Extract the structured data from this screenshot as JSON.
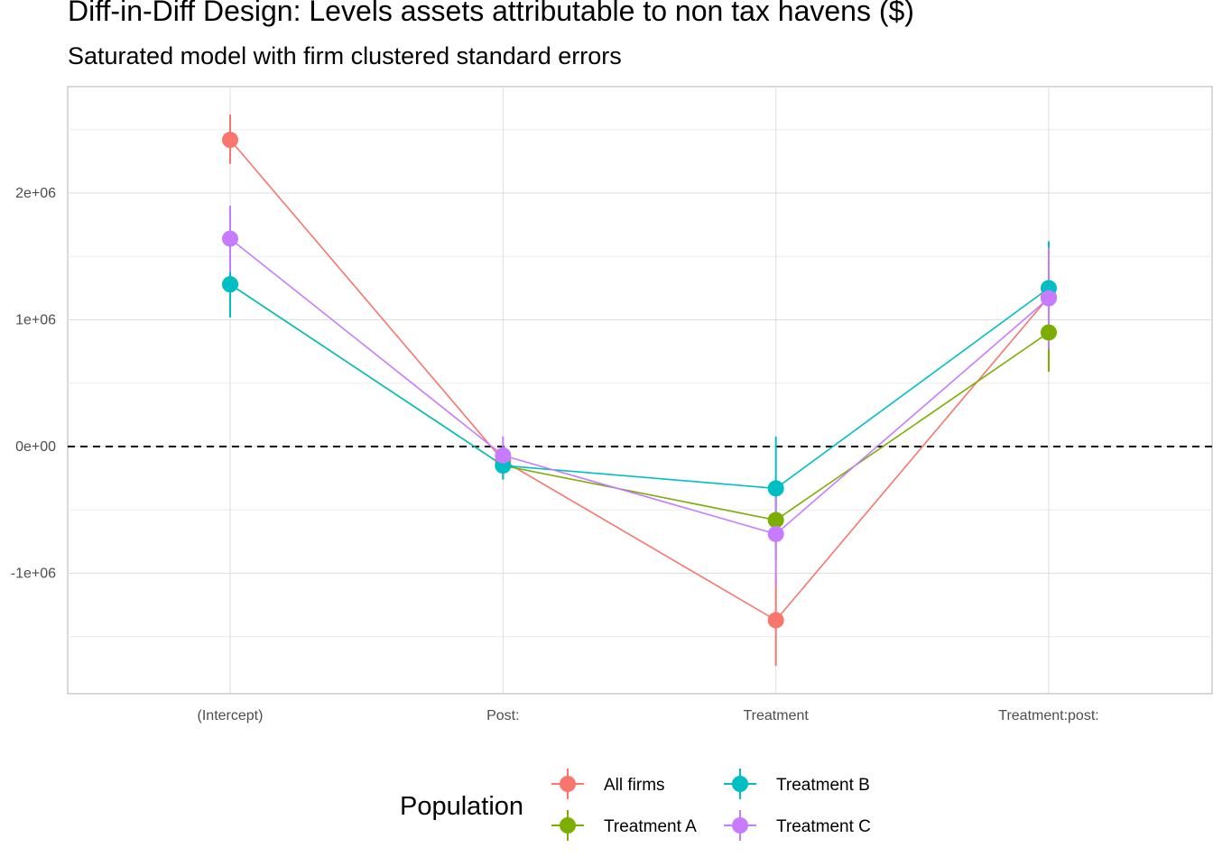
{
  "chart_data": {
    "type": "scatter",
    "title": "Diff-in-Diff Design: Levels assets attributable to non tax havens  ($)",
    "subtitle": "Saturated model with firm clustered standard errors",
    "xlabel": "",
    "ylabel": "",
    "categories": [
      "(Intercept)",
      "Post:",
      "Treatment",
      "Treatment:post:"
    ],
    "y_ticks": [
      -1000000,
      0,
      1000000,
      2000000
    ],
    "y_tick_labels": [
      "-1e+06",
      "0e+00",
      "1e+06",
      "2e+06"
    ],
    "ylim": [
      -1950000,
      2840000
    ],
    "reference_line": 0,
    "grid": true,
    "legend_title": "Population",
    "legend_position": "bottom",
    "series": [
      {
        "name": "All firms",
        "color": "#F8766D",
        "values": [
          2420000,
          -110000,
          -1370000,
          1180000
        ],
        "error_low": [
          2230000,
          -230000,
          -1730000,
          880000
        ],
        "error_high": [
          2620000,
          10000,
          -1010000,
          1480000
        ]
      },
      {
        "name": "Treatment A",
        "color": "#7CAE00",
        "values": [
          1280000,
          -150000,
          -580000,
          900000
        ],
        "error_low": [
          1020000,
          -260000,
          -900000,
          590000
        ],
        "error_high": [
          1540000,
          -40000,
          -260000,
          1210000
        ]
      },
      {
        "name": "Treatment B",
        "color": "#00BFC4",
        "values": [
          1280000,
          -150000,
          -330000,
          1250000
        ],
        "error_low": [
          1020000,
          -260000,
          -740000,
          880000
        ],
        "error_high": [
          1540000,
          -40000,
          80000,
          1620000
        ]
      },
      {
        "name": "Treatment C",
        "color": "#C77CFF",
        "values": [
          1640000,
          -70000,
          -690000,
          1170000
        ],
        "error_low": [
          1380000,
          -220000,
          -1100000,
          770000
        ],
        "error_high": [
          1900000,
          80000,
          -280000,
          1570000
        ]
      }
    ]
  }
}
